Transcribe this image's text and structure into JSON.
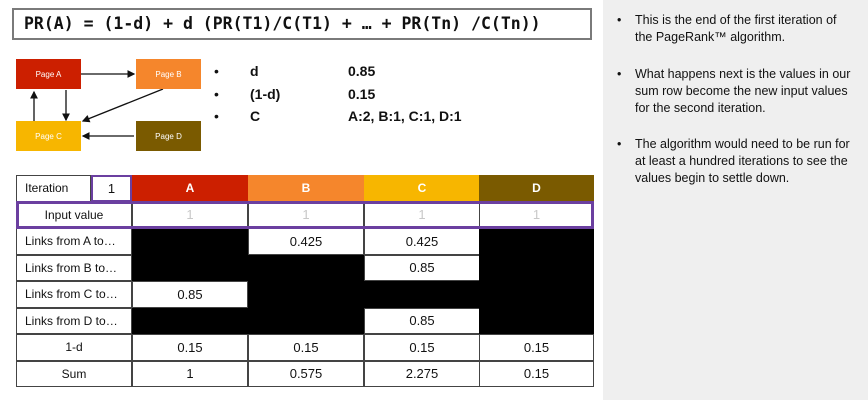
{
  "formula": "PR(A) = (1-d) + d (PR(T1)/C(T1) + … + PR(Tn) /C(Tn))",
  "diagram": {
    "nodes": [
      {
        "label": "Page A",
        "color": "#cc1f00"
      },
      {
        "label": "Page B",
        "color": "#f5862c"
      },
      {
        "label": "Page C",
        "color": "#f7b600"
      },
      {
        "label": "Page D",
        "color": "#7a5a00"
      }
    ]
  },
  "params": [
    {
      "name": "d",
      "value": "0.85"
    },
    {
      "name": "(1-d)",
      "value": "0.15"
    },
    {
      "name": "C",
      "value": "A:2, B:1, C:1, D:1"
    }
  ],
  "table": {
    "iteration_label": "Iteration",
    "iteration_value": "1",
    "columns": [
      {
        "label": "A",
        "color": "#cc1f00"
      },
      {
        "label": "B",
        "color": "#f5862c"
      },
      {
        "label": "C",
        "color": "#f7b600"
      },
      {
        "label": "D",
        "color": "#7a5a00"
      }
    ],
    "rows": [
      {
        "label": "Input value",
        "cells": [
          "1",
          "1",
          "1",
          "1"
        ]
      },
      {
        "label": "Links from A to…",
        "cells": [
          "",
          "0.425",
          "0.425",
          ""
        ]
      },
      {
        "label": "Links from B to…",
        "cells": [
          "",
          "",
          "0.85",
          ""
        ]
      },
      {
        "label": "Links from C to…",
        "cells": [
          "0.85",
          "",
          "",
          ""
        ]
      },
      {
        "label": "Links from D to…",
        "cells": [
          "",
          "",
          "0.85",
          ""
        ]
      },
      {
        "label": "1-d",
        "cells": [
          "0.15",
          "0.15",
          "0.15",
          "0.15"
        ]
      },
      {
        "label": "Sum",
        "cells": [
          "1",
          "0.575",
          "2.275",
          "0.15"
        ]
      }
    ],
    "black_cells": [
      [
        1,
        0
      ],
      [
        1,
        3
      ],
      [
        2,
        0
      ],
      [
        2,
        1
      ],
      [
        2,
        3
      ],
      [
        3,
        1
      ],
      [
        3,
        2
      ],
      [
        3,
        3
      ],
      [
        4,
        0
      ],
      [
        4,
        1
      ],
      [
        4,
        3
      ]
    ],
    "accent": "#6b3fa0"
  },
  "notes": [
    "This is the end of the first iteration of the PageRank™ algorithm.",
    "What happens next is the values in our sum row become the new input values for the second iteration.",
    "The algorithm would need to be run for at least a hundred iterations to see the values begin to settle down."
  ]
}
